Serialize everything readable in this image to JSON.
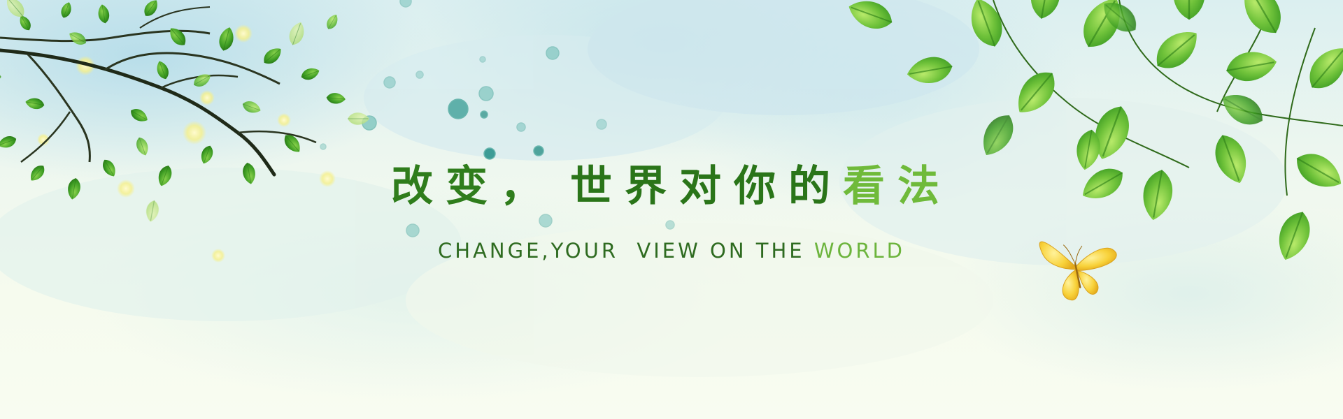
{
  "banner": {
    "headline_cn": {
      "part_a": "改变，",
      "part_b": "世界对你的",
      "part_c": "看法"
    },
    "headline_en": {
      "part_a": "CHANGE,YOUR  VIEW ON THE ",
      "part_b": "WORLD"
    }
  },
  "colors": {
    "leaf_dark": "#2f8a1e",
    "leaf_light": "#8ed04a",
    "butterfly": "#f7d23a",
    "bubble": "#6fb9b3",
    "sky": "#cfe8ee"
  }
}
